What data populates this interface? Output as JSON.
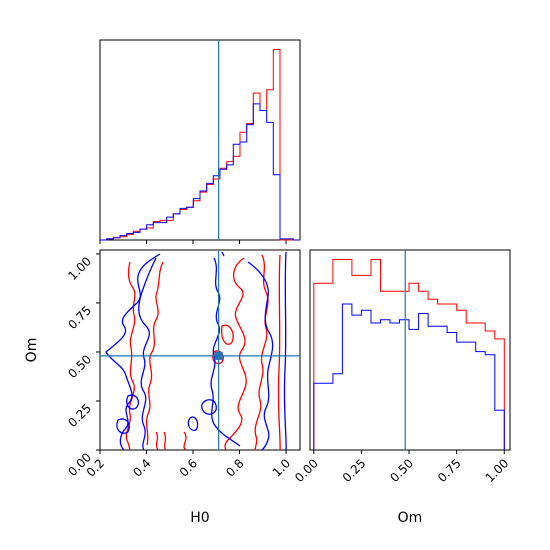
{
  "chart_data": {
    "type": "corner",
    "parameters": [
      "H0",
      "Om"
    ],
    "truths": {
      "H0": 0.71,
      "Om": 0.48
    },
    "colors": {
      "red": "#ff0000",
      "blue": "#0000ff",
      "truth": "#1f77b4"
    },
    "hist_H0": {
      "xlim": [
        0.2,
        1.06
      ],
      "edges": [
        0.2,
        0.2287,
        0.2573,
        0.286,
        0.3147,
        0.3433,
        0.372,
        0.4007,
        0.4293,
        0.458,
        0.4867,
        0.5153,
        0.544,
        0.5727,
        0.6013,
        0.63,
        0.6587,
        0.6873,
        0.716,
        0.7447,
        0.7733,
        0.802,
        0.8307,
        0.8593,
        0.888,
        0.9167,
        0.9453,
        0.974,
        1.0027,
        1.0313,
        1.06
      ],
      "red": [
        0,
        1,
        2,
        3,
        5,
        8,
        10,
        11,
        17,
        18,
        18,
        24,
        28,
        30,
        36,
        44,
        51,
        56,
        66,
        72,
        77,
        99,
        107,
        135,
        119,
        138,
        175,
        0,
        0,
        0
      ],
      "blue": [
        0,
        1,
        2,
        4,
        6,
        7,
        10,
        14,
        16,
        16,
        21,
        24,
        29,
        30,
        38,
        45,
        52,
        59,
        65,
        69,
        88,
        90,
        106,
        125,
        119,
        108,
        60,
        1,
        1,
        0
      ]
    },
    "hist_Om": {
      "xlim": [
        -0.02,
        1.03
      ],
      "edges": [
        0,
        0.05,
        0.1,
        0.15,
        0.2,
        0.25,
        0.3,
        0.35,
        0.4,
        0.45,
        0.5,
        0.55,
        0.6,
        0.65,
        0.7,
        0.75,
        0.8,
        0.85,
        0.9,
        0.95,
        1.0
      ],
      "red": [
        105,
        105,
        120,
        120,
        110,
        110,
        120,
        100,
        100,
        100,
        105,
        100,
        95,
        92,
        92,
        88,
        80,
        80,
        75,
        70
      ],
      "blue": [
        42,
        42,
        48,
        92,
        85,
        88,
        80,
        82,
        80,
        82,
        76,
        86,
        78,
        78,
        74,
        68,
        68,
        62,
        60,
        25
      ]
    },
    "contour": {
      "xlim": [
        0.2,
        1.06
      ],
      "ylim": [
        0.0,
        1.02
      ],
      "xticks": [
        "0.2",
        "0.4",
        "0.6",
        "0.8",
        "1.0"
      ],
      "yticks": [
        "0.00",
        "0.25",
        "0.50",
        "0.75",
        "1.00"
      ],
      "xlabel": "H0",
      "ylabel": "Om"
    },
    "om_ticks": [
      "0.00",
      "0.25",
      "0.50",
      "0.75",
      "1.00"
    ],
    "om_xlabel": "Om"
  }
}
